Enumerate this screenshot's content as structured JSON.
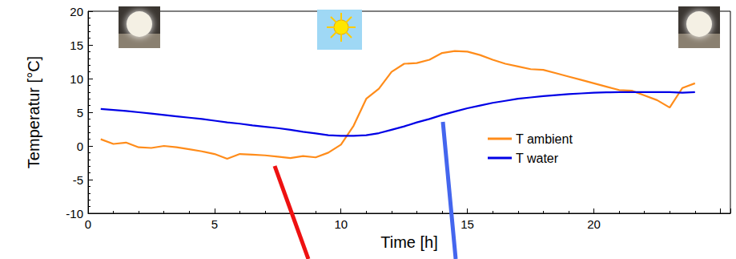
{
  "chart_data": {
    "type": "line",
    "x_label": "Time [h]",
    "y_label": "Temperatur [°C]",
    "x": [
      0.5,
      1,
      1.5,
      2,
      2.5,
      3,
      3.5,
      4,
      4.5,
      5,
      5.5,
      6,
      6.5,
      7,
      7.5,
      8,
      8.5,
      9,
      9.5,
      10,
      10.5,
      11,
      11.5,
      12,
      12.5,
      13,
      13.5,
      14,
      14.5,
      15,
      15.5,
      16,
      16.5,
      17,
      17.5,
      18,
      18.5,
      19,
      19.5,
      20,
      20.5,
      21,
      21.5,
      22,
      22.5,
      23,
      23.5,
      24
    ],
    "series": [
      {
        "name": "T ambient",
        "color": "#ff8c1a",
        "marker": "none",
        "line_style": "solid",
        "values": [
          1.0,
          0.3,
          0.5,
          -0.2,
          -0.3,
          0.0,
          -0.2,
          -0.5,
          -0.8,
          -1.2,
          -1.9,
          -1.2,
          -1.3,
          -1.4,
          -1.6,
          -1.8,
          -1.5,
          -1.7,
          -1.0,
          0.2,
          3.0,
          7.0,
          8.5,
          11.0,
          12.2,
          12.3,
          12.8,
          13.8,
          14.1,
          14.0,
          13.5,
          12.8,
          12.2,
          11.8,
          11.4,
          11.3,
          10.8,
          10.3,
          9.8,
          9.3,
          8.8,
          8.3,
          8.2,
          7.5,
          6.8,
          5.7,
          8.6,
          9.3
        ]
      },
      {
        "name": "T water",
        "color": "#0000e6",
        "marker": "none",
        "line_style": "solid",
        "values": [
          5.5,
          5.35,
          5.2,
          5.0,
          4.8,
          4.6,
          4.4,
          4.2,
          4.0,
          3.75,
          3.5,
          3.3,
          3.05,
          2.85,
          2.65,
          2.4,
          2.1,
          1.85,
          1.6,
          1.5,
          1.5,
          1.6,
          1.9,
          2.4,
          2.9,
          3.5,
          4.0,
          4.6,
          5.1,
          5.6,
          6.0,
          6.4,
          6.7,
          7.0,
          7.2,
          7.4,
          7.55,
          7.7,
          7.8,
          7.9,
          7.95,
          8.0,
          8.0,
          8.0,
          8.0,
          8.0,
          7.9,
          8.0
        ]
      }
    ],
    "xlim": [
      0,
      25.4
    ],
    "xticks": [
      0,
      5,
      10,
      15,
      20
    ],
    "ylim": [
      -10,
      20
    ],
    "yticks": [
      -10,
      -5,
      0,
      5,
      10,
      15,
      20
    ],
    "grid": false,
    "legend": "right"
  }
}
